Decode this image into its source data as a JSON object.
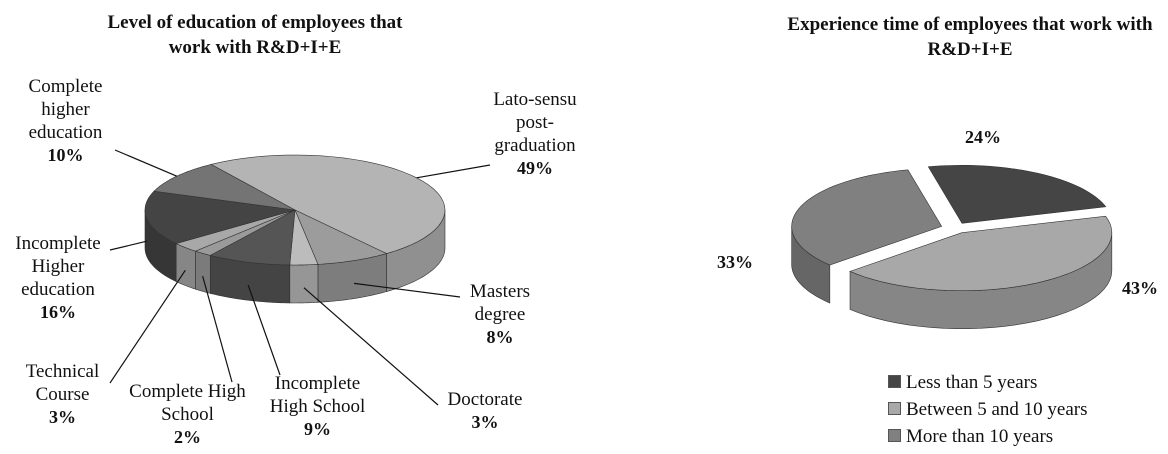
{
  "chart_data": [
    {
      "type": "pie3d",
      "title": "Level of education of employees that work with R&D+I+E",
      "labels": [
        "Lato-sensu post-graduation",
        "Masters degree",
        "Doctorate",
        "Incomplete High School",
        "Complete High School",
        "Technical Course",
        "Incomplete Higher education",
        "Complete higher education"
      ],
      "values": [
        49,
        8,
        3,
        9,
        2,
        3,
        16,
        10
      ],
      "value_labels": [
        "49%",
        "8%",
        "3%",
        "9%",
        "2%",
        "3%",
        "16%",
        "10%"
      ],
      "colors": [
        "#b4b4b4",
        "#9c9c9c",
        "#bcbcbc",
        "#555555",
        "#9a9a9a",
        "#a8a8a8",
        "#444444",
        "#747474"
      ]
    },
    {
      "type": "pie3d-exploded",
      "title": "Experience time of employees that work with R&D+I+E",
      "labels": [
        "Less than 5 years",
        "Between 5 and 10 years",
        "More than 10 years"
      ],
      "values": [
        24,
        43,
        33
      ],
      "value_labels": [
        "24%",
        "43%",
        "33%"
      ],
      "colors": [
        "#454545",
        "#a8a8a8",
        "#808080"
      ]
    }
  ]
}
